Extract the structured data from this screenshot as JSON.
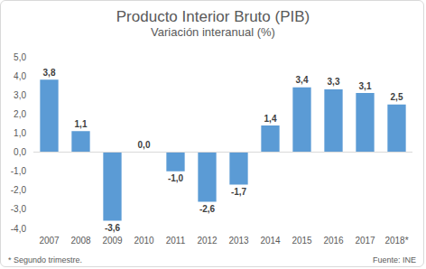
{
  "chart_data": {
    "type": "bar",
    "title": "Producto Interior Bruto (PIB)",
    "subtitle": "Variación interanual (%)",
    "categories": [
      "2007",
      "2008",
      "2009",
      "2010",
      "2011",
      "2012",
      "2013",
      "2014",
      "2015",
      "2016",
      "2017",
      "2018*"
    ],
    "values": [
      3.8,
      1.1,
      -3.6,
      0.0,
      -1.0,
      -2.6,
      -1.7,
      1.4,
      3.4,
      3.3,
      3.1,
      2.5
    ],
    "value_labels": [
      "3,8",
      "1,1",
      "-3,6",
      "0,0",
      "-1,0",
      "-2,6",
      "-1,7",
      "1,4",
      "3,4",
      "3,3",
      "3,1",
      "2,5"
    ],
    "color": "#5b9bd5",
    "ylim": [
      -4,
      5
    ],
    "yticks": [
      {
        "value": -4,
        "label": "-4,0"
      },
      {
        "value": -3,
        "label": "-3,0"
      },
      {
        "value": -2,
        "label": "-2,0"
      },
      {
        "value": -1,
        "label": "-1,0"
      },
      {
        "value": 0,
        "label": "0,0"
      },
      {
        "value": 1,
        "label": "1,0"
      },
      {
        "value": 2,
        "label": "2,0"
      },
      {
        "value": 3,
        "label": "3,0"
      },
      {
        "value": 4,
        "label": "4,0"
      },
      {
        "value": 5,
        "label": "5,0"
      }
    ],
    "grid": false,
    "data_labels": true,
    "annotations": [
      "* Segundo trimestre.",
      "Fuente: INE"
    ]
  }
}
